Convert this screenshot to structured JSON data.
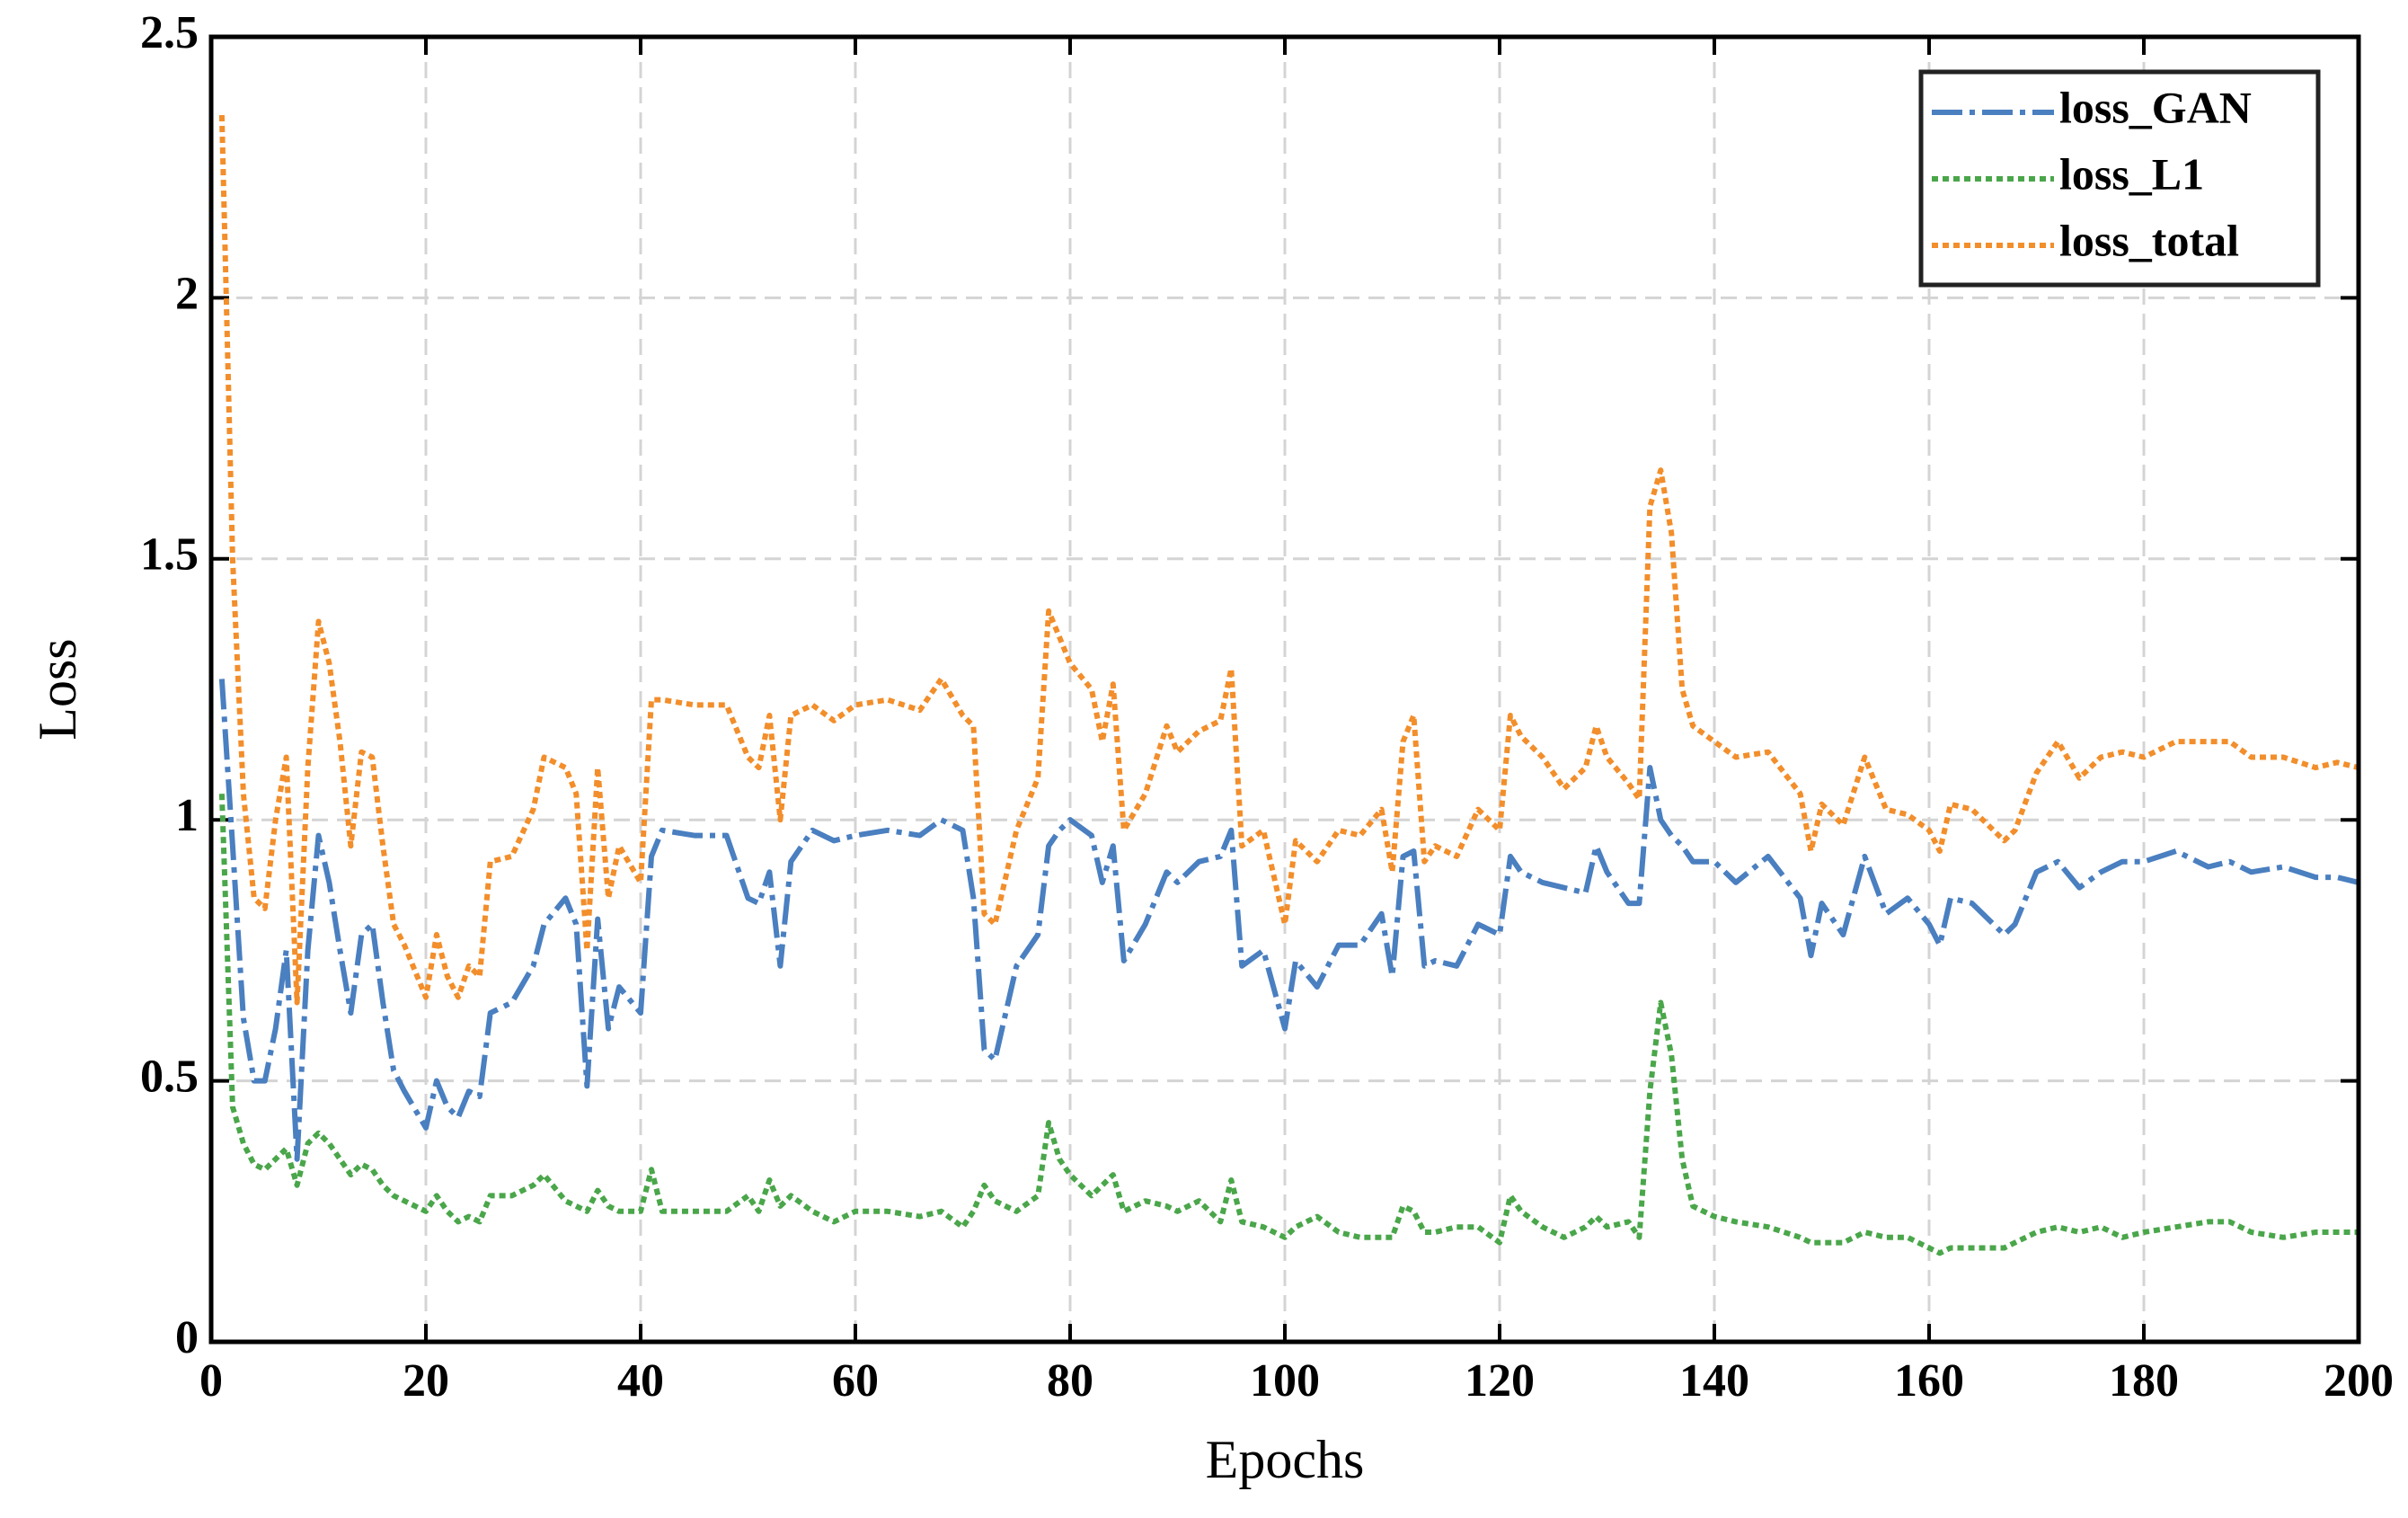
{
  "chart_data": {
    "type": "line",
    "xlabel": "Epochs",
    "ylabel": "Loss",
    "x": [
      1,
      2,
      3,
      4,
      5,
      6,
      7,
      8,
      9,
      10,
      11,
      12,
      13,
      14,
      15,
      16,
      17,
      18,
      20,
      21,
      22,
      23,
      24,
      25,
      26,
      28,
      30,
      31,
      33,
      34,
      35,
      36,
      37,
      38,
      40,
      41,
      42,
      45,
      48,
      50,
      51,
      52,
      53,
      54,
      56,
      58,
      60,
      63,
      66,
      68,
      70,
      71,
      72,
      73,
      75,
      77,
      78,
      79,
      80,
      82,
      83,
      84,
      85,
      87,
      89,
      90,
      92,
      94,
      95,
      96,
      98,
      100,
      101,
      103,
      105,
      107,
      109,
      110,
      111,
      112,
      113,
      114,
      116,
      118,
      120,
      121,
      122,
      124,
      126,
      128,
      129,
      130,
      132,
      133,
      134,
      135,
      136,
      137,
      138,
      140,
      142,
      145,
      148,
      149,
      150,
      152,
      154,
      156,
      158,
      160,
      161,
      162,
      164,
      166,
      167,
      168,
      170,
      172,
      174,
      176,
      178,
      180,
      183,
      186,
      188,
      190,
      193,
      196,
      198,
      200
    ],
    "series": [
      {
        "name": "loss_GAN",
        "color": "#4a7fc0",
        "linestyle": "dashdot",
        "values": [
          1.27,
          0.95,
          0.62,
          0.5,
          0.5,
          0.6,
          0.75,
          0.35,
          0.75,
          0.97,
          0.88,
          0.75,
          0.63,
          0.78,
          0.8,
          0.65,
          0.52,
          0.48,
          0.41,
          0.5,
          0.45,
          0.43,
          0.48,
          0.47,
          0.63,
          0.65,
          0.72,
          0.8,
          0.85,
          0.8,
          0.49,
          0.81,
          0.6,
          0.68,
          0.63,
          0.93,
          0.98,
          0.97,
          0.97,
          0.85,
          0.84,
          0.9,
          0.72,
          0.92,
          0.98,
          0.96,
          0.97,
          0.98,
          0.97,
          1.0,
          0.98,
          0.85,
          0.56,
          0.54,
          0.72,
          0.78,
          0.95,
          0.98,
          1.0,
          0.97,
          0.88,
          0.95,
          0.73,
          0.8,
          0.9,
          0.88,
          0.92,
          0.93,
          0.98,
          0.72,
          0.75,
          0.6,
          0.73,
          0.68,
          0.76,
          0.76,
          0.82,
          0.7,
          0.93,
          0.94,
          0.72,
          0.73,
          0.72,
          0.8,
          0.78,
          0.93,
          0.9,
          0.88,
          0.87,
          0.86,
          0.95,
          0.9,
          0.84,
          0.84,
          1.1,
          1.0,
          0.97,
          0.95,
          0.92,
          0.92,
          0.88,
          0.93,
          0.85,
          0.74,
          0.84,
          0.78,
          0.93,
          0.82,
          0.85,
          0.8,
          0.76,
          0.85,
          0.84,
          0.8,
          0.78,
          0.8,
          0.9,
          0.92,
          0.87,
          0.9,
          0.92,
          0.92,
          0.94,
          0.91,
          0.92,
          0.9,
          0.91,
          0.89,
          0.89,
          0.88
        ]
      },
      {
        "name": "loss_L1",
        "color": "#4aa64a",
        "linestyle": "dotted",
        "values": [
          1.05,
          0.45,
          0.38,
          0.34,
          0.33,
          0.35,
          0.37,
          0.3,
          0.38,
          0.4,
          0.38,
          0.35,
          0.32,
          0.34,
          0.33,
          0.3,
          0.28,
          0.27,
          0.25,
          0.28,
          0.25,
          0.23,
          0.24,
          0.23,
          0.28,
          0.28,
          0.3,
          0.32,
          0.27,
          0.26,
          0.25,
          0.29,
          0.26,
          0.25,
          0.25,
          0.33,
          0.25,
          0.25,
          0.25,
          0.28,
          0.25,
          0.31,
          0.26,
          0.28,
          0.25,
          0.23,
          0.25,
          0.25,
          0.24,
          0.25,
          0.22,
          0.25,
          0.3,
          0.27,
          0.25,
          0.28,
          0.42,
          0.35,
          0.32,
          0.28,
          0.3,
          0.32,
          0.25,
          0.27,
          0.26,
          0.25,
          0.27,
          0.23,
          0.31,
          0.23,
          0.22,
          0.2,
          0.22,
          0.24,
          0.21,
          0.2,
          0.2,
          0.2,
          0.26,
          0.25,
          0.21,
          0.21,
          0.22,
          0.22,
          0.19,
          0.28,
          0.25,
          0.22,
          0.2,
          0.22,
          0.24,
          0.22,
          0.23,
          0.2,
          0.48,
          0.65,
          0.55,
          0.35,
          0.26,
          0.24,
          0.23,
          0.22,
          0.2,
          0.19,
          0.19,
          0.19,
          0.21,
          0.2,
          0.2,
          0.18,
          0.17,
          0.18,
          0.18,
          0.18,
          0.18,
          0.19,
          0.21,
          0.22,
          0.21,
          0.22,
          0.2,
          0.21,
          0.22,
          0.23,
          0.23,
          0.21,
          0.2,
          0.21,
          0.21,
          0.21
        ]
      },
      {
        "name": "loss_total",
        "color": "#f28e2b",
        "linestyle": "dotted",
        "values": [
          2.35,
          1.5,
          1.05,
          0.85,
          0.83,
          1.0,
          1.12,
          0.65,
          1.1,
          1.38,
          1.3,
          1.15,
          0.95,
          1.13,
          1.12,
          0.95,
          0.8,
          0.76,
          0.66,
          0.78,
          0.7,
          0.66,
          0.72,
          0.7,
          0.92,
          0.93,
          1.02,
          1.12,
          1.1,
          1.05,
          0.75,
          1.1,
          0.85,
          0.95,
          0.88,
          1.23,
          1.23,
          1.22,
          1.22,
          1.12,
          1.1,
          1.2,
          1.0,
          1.2,
          1.22,
          1.19,
          1.22,
          1.23,
          1.21,
          1.27,
          1.2,
          1.18,
          0.82,
          0.8,
          0.98,
          1.08,
          1.4,
          1.35,
          1.3,
          1.25,
          1.15,
          1.26,
          0.98,
          1.05,
          1.18,
          1.13,
          1.17,
          1.19,
          1.29,
          0.95,
          0.98,
          0.8,
          0.96,
          0.92,
          0.98,
          0.97,
          1.02,
          0.9,
          1.15,
          1.2,
          0.92,
          0.95,
          0.93,
          1.02,
          0.98,
          1.2,
          1.16,
          1.12,
          1.06,
          1.1,
          1.18,
          1.12,
          1.07,
          1.04,
          1.6,
          1.67,
          1.55,
          1.25,
          1.18,
          1.15,
          1.12,
          1.13,
          1.05,
          0.94,
          1.03,
          0.99,
          1.12,
          1.02,
          1.01,
          0.98,
          0.94,
          1.03,
          1.02,
          0.98,
          0.96,
          0.98,
          1.09,
          1.15,
          1.08,
          1.12,
          1.13,
          1.12,
          1.15,
          1.15,
          1.15,
          1.12,
          1.12,
          1.1,
          1.11,
          1.1
        ]
      }
    ],
    "xlim": [
      0,
      200
    ],
    "xticks": [
      0,
      20,
      40,
      60,
      80,
      100,
      120,
      140,
      160,
      180,
      200
    ],
    "ylim": [
      0,
      2.5
    ],
    "yticks": [
      0,
      0.5,
      1,
      1.5,
      2,
      2.5
    ],
    "grid": true,
    "legend": "upper right"
  }
}
